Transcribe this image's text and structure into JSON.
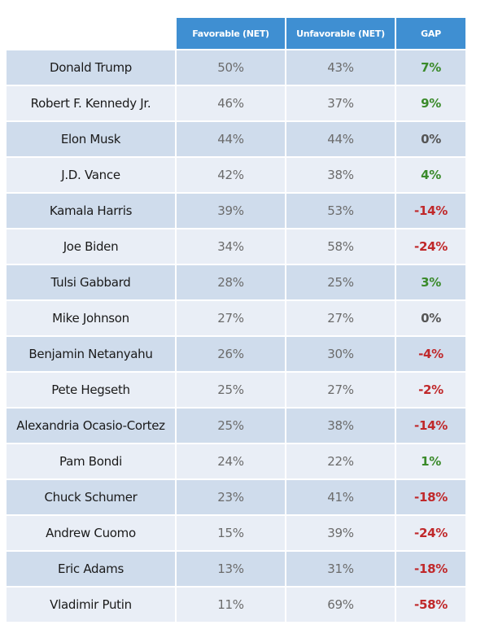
{
  "table": {
    "header": [
      "Favorable (NET)",
      "Unfavorable (NET)",
      "GAP"
    ],
    "rows": [
      [
        "Donald Trump",
        "50%",
        "43%",
        "7%"
      ],
      [
        "Robert F. Kennedy Jr.",
        "46%",
        "37%",
        "9%"
      ],
      [
        "Elon Musk",
        "44%",
        "44%",
        "0%"
      ],
      [
        "J.D. Vance",
        "42%",
        "38%",
        "4%"
      ],
      [
        "Kamala Harris",
        "39%",
        "53%",
        "-14%"
      ],
      [
        "Joe Biden",
        "34%",
        "58%",
        "-24%"
      ],
      [
        "Tulsi Gabbard",
        "28%",
        "25%",
        "3%"
      ],
      [
        "Mike Johnson",
        "27%",
        "27%",
        "0%"
      ],
      [
        "Benjamin Netanyahu",
        "26%",
        "30%",
        "-4%"
      ],
      [
        "Pete Hegseth",
        "25%",
        "27%",
        "-2%"
      ],
      [
        "Alexandria Ocasio-Cortez",
        "25%",
        "38%",
        "-14%"
      ],
      [
        "Pam Bondi",
        "24%",
        "22%",
        "1%"
      ],
      [
        "Chuck Schumer",
        "23%",
        "41%",
        "-18%"
      ],
      [
        "Andrew Cuomo",
        "15%",
        "39%",
        "-24%"
      ],
      [
        "Eric Adams",
        "13%",
        "31%",
        "-18%"
      ],
      [
        "Vladimir Putin",
        "11%",
        "69%",
        "-58%"
      ]
    ]
  }
}
